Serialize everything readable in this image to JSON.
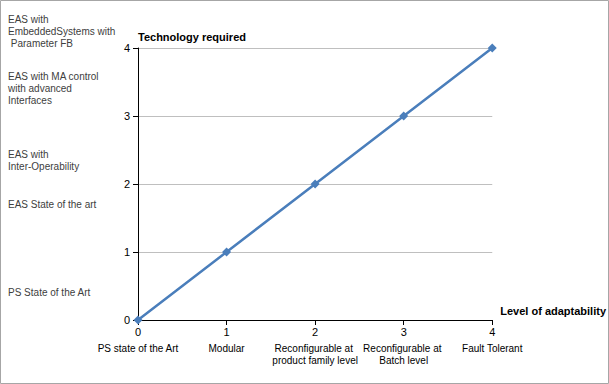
{
  "chart_data": {
    "type": "line",
    "x_title": "Level of adaptability",
    "y_title": "Technology required",
    "x": [
      0,
      1,
      2,
      3,
      4
    ],
    "values": [
      0,
      1,
      2,
      3,
      4
    ],
    "color": "#4a7ebb",
    "marker": "diamond",
    "xlim": [
      0,
      4
    ],
    "xticks": [
      0,
      1,
      2,
      3,
      4
    ],
    "ylim": [
      0,
      4
    ],
    "yticks": [
      0,
      1,
      2,
      3,
      4
    ],
    "grid": true,
    "annotations": [
      {
        "text": "PS State of the Art",
        "axis": "y",
        "value": 0.4
      },
      {
        "text": "EAS State of the art",
        "axis": "y",
        "value": 1.7
      },
      {
        "text": "EAS with Inter-Operability",
        "axis": "y",
        "value": 2.35
      },
      {
        "text": "EAS with MA control with advanced Interfaces",
        "axis": "y",
        "value": 3.4
      },
      {
        "text": "EAS with EmbeddedSystems with Parameter FB",
        "axis": "y",
        "value": 4.25
      },
      {
        "text": "PS state of the Art",
        "axis": "x",
        "value": 0
      },
      {
        "text": "Modular",
        "axis": "x",
        "value": 1
      },
      {
        "text": "Reconfigurable at product family level",
        "axis": "x",
        "value": 2
      },
      {
        "text": "Reconfigurable at Batch level",
        "axis": "x",
        "value": 3
      },
      {
        "text": "Fault Tolerant",
        "axis": "x",
        "value": 4
      }
    ]
  }
}
